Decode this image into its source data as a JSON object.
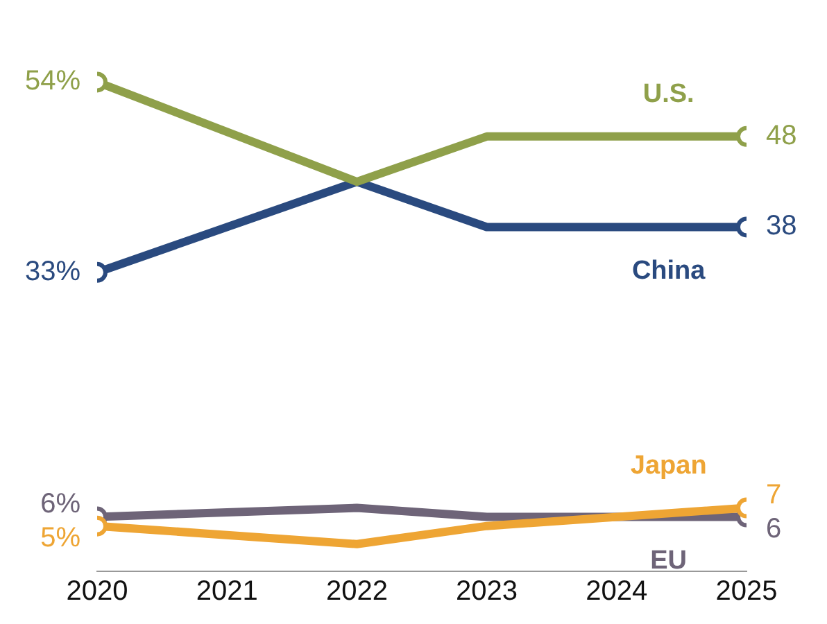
{
  "chart_data": {
    "type": "line",
    "x": [
      2020,
      2022,
      2023,
      2025
    ],
    "xlim": [
      2020,
      2025
    ],
    "xticks": [
      2020,
      2021,
      2022,
      2023,
      2024,
      2025
    ],
    "tick_labels": "x",
    "grid": false,
    "legend": false,
    "marker": "circle",
    "line_style": "solid",
    "series": [
      {
        "name": "U.S.",
        "color": "#8fa04a",
        "values": [
          54,
          43,
          48,
          48
        ],
        "value_labels": [
          "54%",
          null,
          null,
          "48"
        ]
      },
      {
        "name": "China",
        "color": "#2a4a7f",
        "values": [
          33,
          43,
          38,
          38
        ],
        "value_labels": [
          "33%",
          null,
          null,
          "38"
        ]
      },
      {
        "name": "Japan",
        "color": "#eea534",
        "values": [
          5,
          3,
          5,
          7
        ],
        "value_labels": [
          "5%",
          null,
          null,
          "7"
        ]
      },
      {
        "name": "EU",
        "color": "#6e6478",
        "values": [
          6,
          7,
          6,
          6
        ],
        "value_labels": [
          "6%",
          null,
          null,
          "6"
        ]
      }
    ]
  }
}
